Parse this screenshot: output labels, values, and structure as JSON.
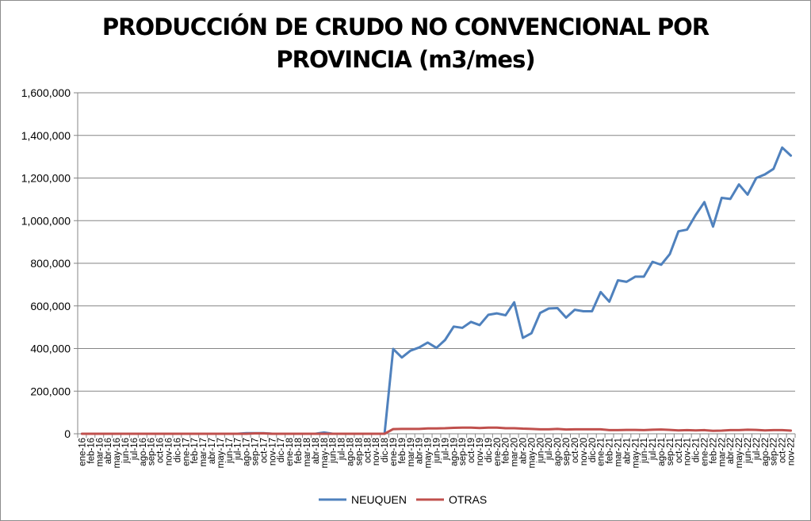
{
  "chart_data": {
    "type": "line",
    "title_line1": "PRODUCCIÓN DE CRUDO NO CONVENCIONAL POR",
    "title_line2": "PROVINCIA (m3/mes)",
    "xlabel": "",
    "ylabel": "",
    "ylim": [
      0,
      1600000
    ],
    "yticks": [
      "0",
      "200,000",
      "400,000",
      "600,000",
      "800,000",
      "1,000,000",
      "1,200,000",
      "1,400,000",
      "1,600,000"
    ],
    "grid": true,
    "legend_position": "bottom",
    "categories": [
      "ene-16",
      "feb-16",
      "mar-16",
      "abr-16",
      "may-16",
      "jun-16",
      "jul-16",
      "ago-16",
      "sep-16",
      "oct-16",
      "nov-16",
      "dic-16",
      "ene-17",
      "feb-17",
      "mar-17",
      "abr-17",
      "may-17",
      "jun-17",
      "jul-17",
      "ago-17",
      "sep-17",
      "oct-17",
      "nov-17",
      "dic-17",
      "ene-18",
      "feb-18",
      "mar-18",
      "abr-18",
      "may-18",
      "jun-18",
      "jul-18",
      "ago-18",
      "sep-18",
      "oct-18",
      "nov-18",
      "dic-18",
      "ene-19",
      "feb-19",
      "mar-19",
      "abr-19",
      "may-19",
      "jun-19",
      "jul-19",
      "ago-19",
      "sep-19",
      "oct-19",
      "nov-19",
      "dic-19",
      "ene-20",
      "feb-20",
      "mar-20",
      "abr-20",
      "may-20",
      "jun-20",
      "jul-20",
      "ago-20",
      "sep-20",
      "oct-20",
      "nov-20",
      "dic-20",
      "ene-21",
      "feb-21",
      "mar-21",
      "abr-21",
      "may-21",
      "jun-21",
      "jul-21",
      "ago-21",
      "sep-21",
      "oct-21",
      "nov-21",
      "dic-21",
      "ene-22",
      "feb-22",
      "mar-22",
      "abr-22",
      "may-22",
      "jun-22",
      "jul-22",
      "ago-22",
      "sep-22",
      "oct-22",
      "nov-22"
    ],
    "series": [
      {
        "name": "NEUQUEN",
        "color": "#4f81bd",
        "values": [
          0,
          0,
          0,
          0,
          0,
          0,
          0,
          0,
          0,
          0,
          0,
          0,
          0,
          0,
          0,
          0,
          0,
          0,
          0,
          3000,
          3000,
          3000,
          0,
          0,
          0,
          0,
          0,
          0,
          6000,
          0,
          0,
          0,
          0,
          0,
          0,
          0,
          398000,
          358000,
          390000,
          405000,
          428000,
          403000,
          440000,
          503000,
          497000,
          525000,
          510000,
          558000,
          565000,
          556000,
          617000,
          450000,
          472000,
          567000,
          588000,
          590000,
          545000,
          582000,
          575000,
          575000,
          665000,
          620000,
          720000,
          713000,
          737000,
          737000,
          807000,
          793000,
          843000,
          950000,
          958000,
          1027000,
          1087000,
          972000,
          1107000,
          1102000,
          1170000,
          1122000,
          1200000,
          1217000,
          1243000,
          1343000,
          1305000
        ]
      },
      {
        "name": "OTRAS",
        "color": "#c0504d",
        "values": [
          0,
          0,
          0,
          0,
          0,
          0,
          0,
          0,
          0,
          0,
          0,
          0,
          0,
          0,
          0,
          0,
          0,
          0,
          0,
          0,
          2000,
          2000,
          0,
          0,
          0,
          0,
          0,
          0,
          0,
          0,
          0,
          0,
          0,
          0,
          0,
          0,
          22000,
          23000,
          23000,
          23000,
          25000,
          25000,
          26000,
          28000,
          29000,
          29000,
          27000,
          29000,
          29000,
          26000,
          26000,
          24000,
          23000,
          21000,
          21000,
          23000,
          20000,
          21000,
          21000,
          21000,
          21000,
          17000,
          17000,
          18000,
          18000,
          17000,
          19000,
          20000,
          18000,
          16000,
          17000,
          16000,
          17000,
          14000,
          15000,
          17000,
          17000,
          19000,
          18000,
          16000,
          17000,
          17000,
          15000
        ]
      }
    ]
  }
}
